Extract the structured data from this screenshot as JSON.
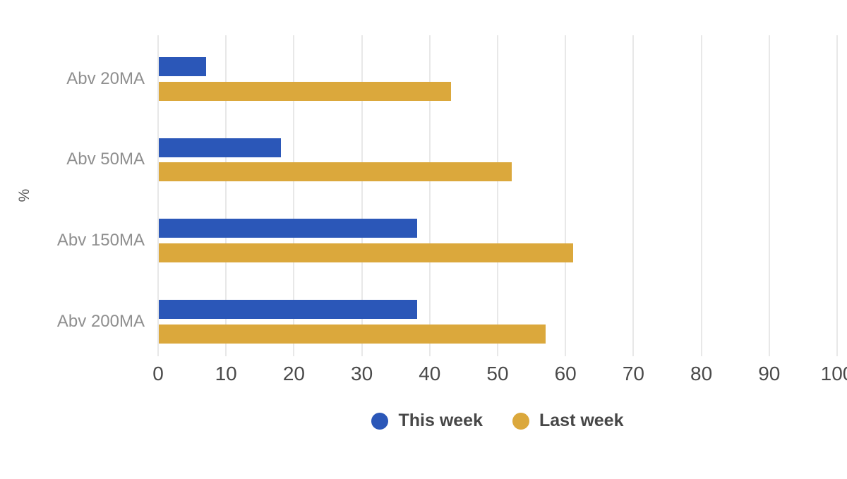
{
  "chart_data": {
    "type": "bar",
    "orientation": "horizontal",
    "title": "",
    "xlabel": "",
    "ylabel": "%",
    "xlim": [
      0,
      100
    ],
    "xticks": [
      0,
      10,
      20,
      30,
      40,
      50,
      60,
      70,
      80,
      90,
      100
    ],
    "grid": true,
    "legend_position": "bottom",
    "categories": [
      "Abv 20MA",
      "Abv 50MA",
      "Abv 150MA",
      "Abv 200MA"
    ],
    "series": [
      {
        "name": "This week",
        "color": "#2B57B8",
        "values": [
          7,
          18,
          38,
          38
        ]
      },
      {
        "name": "Last week",
        "color": "#DBA83C",
        "values": [
          43,
          52,
          61,
          57
        ]
      }
    ]
  },
  "style": {
    "background": "#FFFFFF",
    "grid_color": "#E8E8E8",
    "tick_label_color": "#4A4A4A",
    "category_label_color": "#8F8F8F",
    "axis_label_color": "#555555",
    "legend_text_color": "#474747"
  }
}
